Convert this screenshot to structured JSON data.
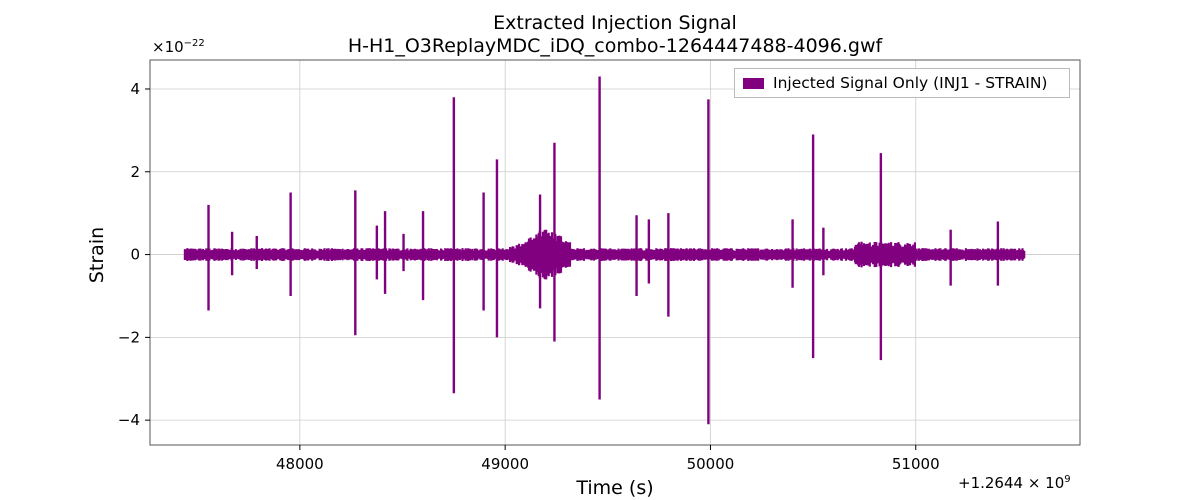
{
  "colors": {
    "signal": "#800080",
    "grid": "#cccccc",
    "axis": "#555555"
  },
  "chart_data": {
    "type": "line",
    "title": "Extracted Injection Signal",
    "subtitle": "H-H1_O3ReplayMDC_iDQ_combo-1264447488-4096.gwf",
    "xlabel": "Time (s)",
    "ylabel": "Strain",
    "y_scale_label": "×10",
    "y_scale_exponent": "−22",
    "x_offset_label": "+1.2644 × 10",
    "x_offset_exponent": "9",
    "x_offset_value": 1264400000,
    "xlim": [
      47270,
      51800
    ],
    "ylim": [
      -4.6,
      4.7
    ],
    "x_ticks": [
      48000,
      49000,
      50000,
      51000
    ],
    "x_tick_labels": [
      "48000",
      "49000",
      "50000",
      "51000"
    ],
    "y_ticks": [
      -4,
      -2,
      0,
      2,
      4
    ],
    "y_tick_labels": [
      "−4",
      "−2",
      "0",
      "2",
      "4"
    ],
    "grid": true,
    "legend_position": "top-right",
    "series": [
      {
        "name": "Injected Signal Only (INJ1 - STRAIN)",
        "color": "#800080",
        "x_range": [
          47440,
          51530
        ],
        "baseline_amplitude": 0.12,
        "spikes": [
          {
            "t": 47555,
            "up": 1.2,
            "down": -1.35
          },
          {
            "t": 47670,
            "up": 0.55,
            "down": -0.5
          },
          {
            "t": 47790,
            "up": 0.45,
            "down": -0.35
          },
          {
            "t": 47955,
            "up": 1.5,
            "down": -1.0
          },
          {
            "t": 48270,
            "up": 1.55,
            "down": -1.95
          },
          {
            "t": 48375,
            "up": 0.7,
            "down": -0.6
          },
          {
            "t": 48415,
            "up": 1.05,
            "down": -0.95
          },
          {
            "t": 48505,
            "up": 0.5,
            "down": -0.4
          },
          {
            "t": 48600,
            "up": 1.05,
            "down": -1.1
          },
          {
            "t": 48750,
            "up": 3.8,
            "down": -3.35
          },
          {
            "t": 48895,
            "up": 1.5,
            "down": -1.35
          },
          {
            "t": 48960,
            "up": 2.3,
            "down": -2.0
          },
          {
            "t": 49170,
            "up": 1.45,
            "down": -1.3
          },
          {
            "t": 49240,
            "up": 2.7,
            "down": -2.1
          },
          {
            "t": 49460,
            "up": 4.3,
            "down": -3.5
          },
          {
            "t": 49640,
            "up": 0.95,
            "down": -1.0
          },
          {
            "t": 49700,
            "up": 0.85,
            "down": -0.7
          },
          {
            "t": 49795,
            "up": 1.0,
            "down": -1.5
          },
          {
            "t": 49990,
            "up": 3.75,
            "down": -4.1
          },
          {
            "t": 50400,
            "up": 0.85,
            "down": -0.8
          },
          {
            "t": 50500,
            "up": 2.9,
            "down": -2.5
          },
          {
            "t": 50550,
            "up": 0.65,
            "down": -0.5
          },
          {
            "t": 50830,
            "up": 2.45,
            "down": -2.55
          },
          {
            "t": 51170,
            "up": 0.6,
            "down": -0.75
          },
          {
            "t": 51400,
            "up": 0.8,
            "down": -0.75
          }
        ]
      }
    ]
  }
}
